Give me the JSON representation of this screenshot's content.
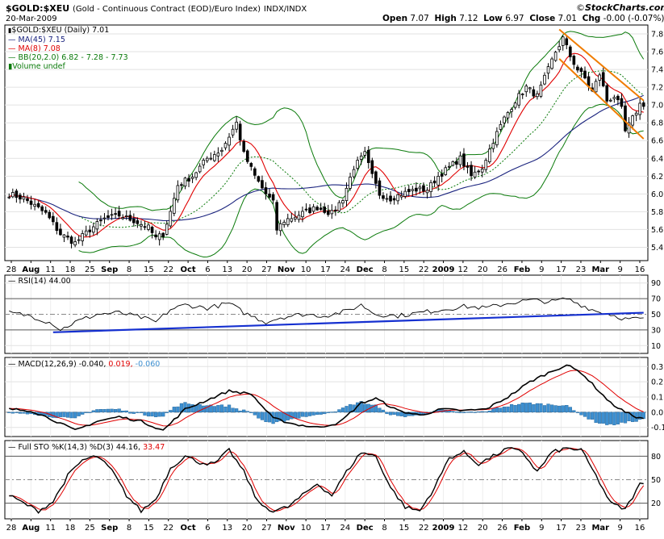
{
  "header": {
    "symbol": "$GOLD:$XEU",
    "description": "(Gold - Continuous Contract (EOD)/Euro Index)",
    "exchange": "INDX/INDX",
    "date": "20-Mar-2009",
    "open_label": "Open",
    "open": "7.07",
    "high_label": "High",
    "high": "7.12",
    "low_label": "Low",
    "low": "6.97",
    "close_label": "Close",
    "close": "7.01",
    "chg_label": "Chg",
    "chg": "-0.00 (-0.07%)",
    "brand_copy": "©",
    "brand": "StockCharts.com"
  },
  "legend": {
    "price": "$GOLD:$XEU (Daily) 7.01",
    "ma45": "MA(45) 7.15",
    "ma8": "MA(8) 7.08",
    "bb": "BB(20,2.0) 6.82 - 7.28 - 7.73",
    "volume": "Volume undef",
    "rsi": "RSI(14) 44.00",
    "macd_label": "MACD(12,26,9)",
    "macd_v1": "-0.040,",
    "macd_v2": "0.019,",
    "macd_v3": "-0.060",
    "sto_label": "Full STO %K(14,3) %D(3)",
    "sto_k": "44.16,",
    "sto_d": "33.47"
  },
  "colors": {
    "candle": "#000000",
    "ma45": "#1a237e",
    "ma8": "#e00000",
    "bb_band": "#0a7a0a",
    "bb_mid": "#0a7a0a",
    "channel": "#f07c00",
    "rsi": "#000000",
    "rsi_trend": "#1530d0",
    "macd": "#000000",
    "signal": "#e00000",
    "hist": "#3d8fd0",
    "sto_k": "#000000",
    "sto_d": "#e00000",
    "macd_v3_color": "#3d8fd0"
  },
  "chart_data": [
    {
      "type": "candlestick",
      "panel": "price",
      "x_tick_labels": [
        "28",
        "Aug",
        "11",
        "18",
        "25",
        "Sep",
        "8",
        "15",
        "22",
        "Oct",
        "6",
        "13",
        "20",
        "27",
        "Nov",
        "10",
        "17",
        "24",
        "Dec",
        "8",
        "15",
        "22",
        "2009",
        "12",
        "20",
        "26",
        "Feb",
        "9",
        "17",
        "23",
        "Mar",
        "9",
        "16"
      ],
      "y_ticks": [
        "7.8",
        "7.6",
        "7.4",
        "7.2",
        "7.0",
        "6.8",
        "6.6",
        "6.4",
        "6.2",
        "6.0",
        "5.8",
        "5.6",
        "5.4"
      ],
      "ylim": [
        5.25,
        7.9
      ],
      "close_anchors": [
        [
          0,
          6.0
        ],
        [
          4,
          5.95
        ],
        [
          10,
          5.78
        ],
        [
          14,
          5.55
        ],
        [
          18,
          5.45
        ],
        [
          22,
          5.6
        ],
        [
          26,
          5.72
        ],
        [
          30,
          5.76
        ],
        [
          34,
          5.7
        ],
        [
          38,
          5.62
        ],
        [
          40,
          5.5
        ],
        [
          42,
          5.55
        ],
        [
          44,
          5.8
        ],
        [
          46,
          6.1
        ],
        [
          50,
          6.2
        ],
        [
          54,
          6.4
        ],
        [
          58,
          6.5
        ],
        [
          62,
          6.8
        ],
        [
          64,
          6.45
        ],
        [
          67,
          6.2
        ],
        [
          70,
          6.0
        ],
        [
          72,
          5.9
        ],
        [
          73,
          5.6
        ],
        [
          75,
          5.7
        ],
        [
          78,
          5.75
        ],
        [
          81,
          5.8
        ],
        [
          84,
          5.85
        ],
        [
          88,
          5.78
        ],
        [
          91,
          5.95
        ],
        [
          94,
          6.3
        ],
        [
          97,
          6.45
        ],
        [
          99,
          6.2
        ],
        [
          101,
          6.0
        ],
        [
          104,
          5.95
        ],
        [
          107,
          6.0
        ],
        [
          111,
          6.05
        ],
        [
          114,
          6.05
        ],
        [
          117,
          6.2
        ],
        [
          120,
          6.3
        ],
        [
          123,
          6.4
        ],
        [
          126,
          6.2
        ],
        [
          129,
          6.3
        ],
        [
          132,
          6.6
        ],
        [
          135,
          6.85
        ],
        [
          138,
          7.05
        ],
        [
          141,
          7.2
        ],
        [
          144,
          7.1
        ],
        [
          147,
          7.4
        ],
        [
          149,
          7.6
        ],
        [
          151,
          7.75
        ],
        [
          153,
          7.55
        ],
        [
          155,
          7.4
        ],
        [
          157,
          7.3
        ],
        [
          159,
          7.15
        ],
        [
          161,
          7.35
        ],
        [
          163,
          7.05
        ],
        [
          165,
          7.1
        ],
        [
          167,
          6.95
        ],
        [
          168,
          6.7
        ],
        [
          170,
          6.85
        ],
        [
          172,
          7.01
        ]
      ],
      "series": [
        {
          "name": "$GOLD:$XEU (Daily)",
          "last": 7.01
        },
        {
          "name": "MA(45)",
          "last": 7.15
        },
        {
          "name": "MA(8)",
          "last": 7.08
        },
        {
          "name": "BB(20,2.0)",
          "lower": 6.82,
          "mid": 7.28,
          "upper": 7.73
        }
      ],
      "channel": {
        "from_index": 150,
        "to_index": 173,
        "upper_start": 7.85,
        "upper_end": 7.05,
        "lower_start": 7.52,
        "lower_end": 6.62
      }
    },
    {
      "type": "line",
      "panel": "rsi",
      "name": "RSI(14)",
      "last": 44.0,
      "y_ticks": [
        "90",
        "70",
        "50",
        "30",
        "10"
      ],
      "ylim": [
        0,
        100
      ],
      "anchors": [
        [
          0,
          52
        ],
        [
          6,
          48
        ],
        [
          12,
          38
        ],
        [
          14,
          30
        ],
        [
          18,
          40
        ],
        [
          24,
          50
        ],
        [
          30,
          52
        ],
        [
          36,
          46
        ],
        [
          40,
          40
        ],
        [
          44,
          56
        ],
        [
          48,
          62
        ],
        [
          54,
          58
        ],
        [
          60,
          64
        ],
        [
          64,
          52
        ],
        [
          70,
          40
        ],
        [
          74,
          46
        ],
        [
          80,
          50
        ],
        [
          86,
          48
        ],
        [
          92,
          54
        ],
        [
          96,
          62
        ],
        [
          100,
          50
        ],
        [
          106,
          48
        ],
        [
          112,
          52
        ],
        [
          118,
          56
        ],
        [
          124,
          60
        ],
        [
          130,
          58
        ],
        [
          136,
          64
        ],
        [
          142,
          68
        ],
        [
          148,
          66
        ],
        [
          152,
          70
        ],
        [
          156,
          62
        ],
        [
          160,
          54
        ],
        [
          164,
          50
        ],
        [
          168,
          44
        ],
        [
          172,
          44
        ]
      ],
      "trendline": {
        "from_index": 12,
        "to_index": 173,
        "from_value": 27,
        "to_value": 52
      }
    },
    {
      "type": "line+histogram",
      "panel": "macd",
      "name": "MACD(12,26,9)",
      "values_shown": {
        "macd": -0.04,
        "signal": 0.019,
        "histogram": -0.06
      },
      "y_ticks": [
        "0.3",
        "0.2",
        "0.1",
        "0.0",
        "-0.1"
      ],
      "ylim": [
        -0.16,
        0.36
      ],
      "macd_anchors": [
        [
          0,
          0.02
        ],
        [
          6,
          0.01
        ],
        [
          12,
          -0.05
        ],
        [
          18,
          -0.12
        ],
        [
          24,
          -0.06
        ],
        [
          30,
          -0.03
        ],
        [
          36,
          -0.06
        ],
        [
          42,
          -0.12
        ],
        [
          48,
          0.02
        ],
        [
          54,
          0.08
        ],
        [
          60,
          0.14
        ],
        [
          66,
          0.12
        ],
        [
          72,
          -0.04
        ],
        [
          78,
          -0.08
        ],
        [
          84,
          -0.1
        ],
        [
          90,
          -0.07
        ],
        [
          96,
          0.06
        ],
        [
          100,
          0.09
        ],
        [
          106,
          0.01
        ],
        [
          112,
          -0.02
        ],
        [
          118,
          0.02
        ],
        [
          124,
          0.01
        ],
        [
          130,
          0.02
        ],
        [
          136,
          0.1
        ],
        [
          142,
          0.2
        ],
        [
          148,
          0.27
        ],
        [
          152,
          0.31
        ],
        [
          156,
          0.26
        ],
        [
          160,
          0.16
        ],
        [
          164,
          0.06
        ],
        [
          168,
          0.0
        ],
        [
          172,
          -0.04
        ]
      ]
    },
    {
      "type": "line",
      "panel": "stochastic",
      "name": "Full STO %K(14,3) %D(3)",
      "values_shown": {
        "k": 44.16,
        "d": 33.47
      },
      "y_ticks": [
        "80",
        "50",
        "20"
      ],
      "ylim": [
        0,
        100
      ],
      "k_anchors": [
        [
          0,
          30
        ],
        [
          4,
          20
        ],
        [
          8,
          10
        ],
        [
          12,
          22
        ],
        [
          16,
          55
        ],
        [
          20,
          75
        ],
        [
          24,
          80
        ],
        [
          28,
          62
        ],
        [
          32,
          30
        ],
        [
          36,
          10
        ],
        [
          40,
          25
        ],
        [
          44,
          65
        ],
        [
          48,
          80
        ],
        [
          52,
          72
        ],
        [
          56,
          70
        ],
        [
          60,
          88
        ],
        [
          64,
          60
        ],
        [
          68,
          20
        ],
        [
          72,
          10
        ],
        [
          76,
          15
        ],
        [
          80,
          30
        ],
        [
          84,
          45
        ],
        [
          88,
          30
        ],
        [
          92,
          60
        ],
        [
          96,
          85
        ],
        [
          100,
          80
        ],
        [
          104,
          40
        ],
        [
          108,
          15
        ],
        [
          112,
          10
        ],
        [
          116,
          40
        ],
        [
          120,
          78
        ],
        [
          124,
          85
        ],
        [
          128,
          70
        ],
        [
          132,
          80
        ],
        [
          136,
          90
        ],
        [
          140,
          85
        ],
        [
          144,
          60
        ],
        [
          148,
          85
        ],
        [
          152,
          90
        ],
        [
          156,
          88
        ],
        [
          160,
          55
        ],
        [
          164,
          20
        ],
        [
          168,
          12
        ],
        [
          172,
          44
        ]
      ]
    }
  ]
}
